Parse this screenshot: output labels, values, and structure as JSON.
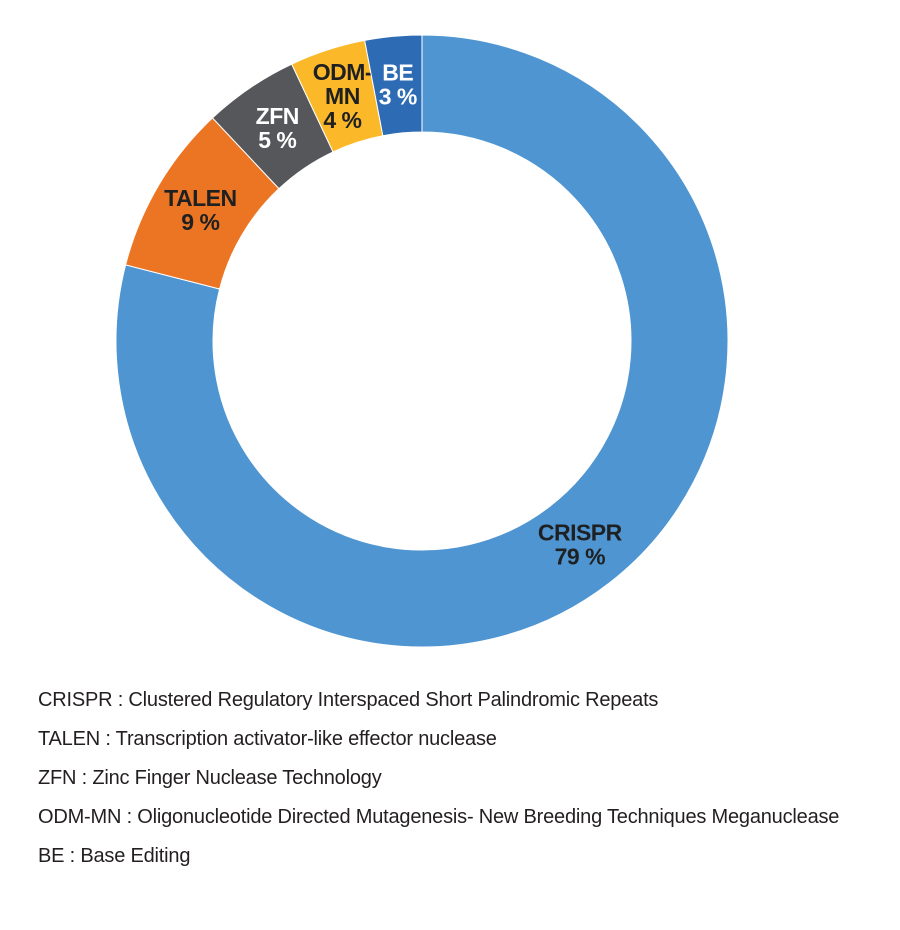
{
  "page": {
    "background_color": "#FFFFFF",
    "text_color": "#231F20"
  },
  "chart_data": {
    "type": "pie",
    "subtype": "donut",
    "title": "",
    "unit": "%",
    "start_angle_deg": 0,
    "direction": "clockwise",
    "hole_ratio": 0.683,
    "legend_position": "below-as-glossary",
    "slices": [
      {
        "label": "CRISPR",
        "value": 79,
        "color": "#4E95D1",
        "label_lines": [
          "CRISPR",
          "79 %"
        ],
        "label_color": "#1E2021"
      },
      {
        "label": "TALEN",
        "value": 9,
        "color": "#EC7524",
        "label_lines": [
          "TALEN",
          "9 %"
        ],
        "label_color": "#1E2021"
      },
      {
        "label": "ZFN",
        "value": 5,
        "color": "#56575B",
        "label_lines": [
          "ZFN",
          "5 %"
        ],
        "label_color": "#FFFFFF"
      },
      {
        "label": "ODM-MN",
        "value": 4,
        "color": "#FBB829",
        "label_lines": [
          "ODM-",
          "MN",
          "4 %"
        ],
        "label_color": "#1E2021"
      },
      {
        "label": "BE",
        "value": 3,
        "color": "#2D6CB5",
        "label_lines": [
          "BE",
          "3 %"
        ],
        "label_color": "#FFFFFF"
      }
    ]
  },
  "glossary": {
    "text_color": "#231F20",
    "lines": [
      {
        "term": "CRISPR",
        "text": "CRISPR : Clustered Regulatory Interspaced Short Palindromic Repeats"
      },
      {
        "term": "TALEN",
        "text": "TALEN : Transcription activator-like effector nuclease"
      },
      {
        "term": "ZFN",
        "text": "ZFN : Zinc Finger Nuclease Technology"
      },
      {
        "term": "ODM-MN",
        "text": "ODM-MN : Oligonucleotide Directed Mutagenesis- New Breeding Techniques Meganuclease"
      },
      {
        "term": "BE",
        "text": "BE : Base Editing"
      }
    ]
  }
}
